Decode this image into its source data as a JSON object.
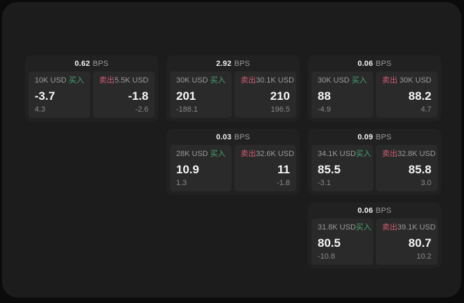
{
  "page": {
    "background": "#0b0b0b",
    "panel_background": "#1c1c1c",
    "card_background": "#212121",
    "subpanel_background": "#2a2a2a"
  },
  "labels": {
    "bps_unit": "BPS",
    "buy": "买入",
    "sell": "卖出"
  },
  "colors": {
    "buy_green": "#45a56c",
    "sell_red": "#d05c70",
    "text_primary": "#f5f5f5",
    "text_secondary": "#9c9c9c",
    "text_muted": "#8a8a8a"
  },
  "cards": [
    {
      "bps": "0.62",
      "buy": {
        "notional": "10K USD",
        "price": "-3.7",
        "delta": "4.3"
      },
      "sell": {
        "notional": "5.5K USD",
        "price": "-1.8",
        "delta": "-2.6"
      }
    },
    {
      "bps": "2.92",
      "buy": {
        "notional": "30K USD",
        "price": "201",
        "delta": "-188.1"
      },
      "sell": {
        "notional": "30.1K USD",
        "price": "210",
        "delta": "196.5"
      }
    },
    {
      "bps": "0.06",
      "buy": {
        "notional": "30K USD",
        "price": "88",
        "delta": "-4.9"
      },
      "sell": {
        "notional": "30K USD",
        "price": "88.2",
        "delta": "4.7"
      }
    },
    {
      "bps": "0.03",
      "buy": {
        "notional": "28K USD",
        "price": "10.9",
        "delta": "1.3"
      },
      "sell": {
        "notional": "32.6K USD",
        "price": "11",
        "delta": "-1.8"
      }
    },
    {
      "bps": "0.09",
      "buy": {
        "notional": "34.1K USD",
        "price": "85.5",
        "delta": "-3.1"
      },
      "sell": {
        "notional": "32.8K USD",
        "price": "85.8",
        "delta": "3.0"
      }
    },
    {
      "bps": "0.06",
      "buy": {
        "notional": "31.8K USD",
        "price": "80.5",
        "delta": "-10.8"
      },
      "sell": {
        "notional": "39.1K USD",
        "price": "80.7",
        "delta": "10.2"
      }
    }
  ]
}
